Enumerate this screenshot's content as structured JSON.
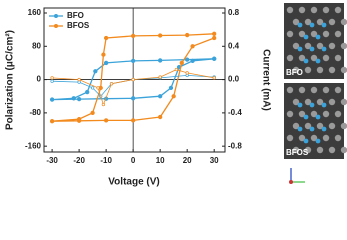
{
  "chart_data": {
    "type": "line",
    "x_label": "Voltage (V)",
    "y_label": "Polarization (μC/cm²)",
    "y2_label": "Current (mA)",
    "xlim": [
      -33,
      34
    ],
    "xticks": [
      -30,
      -20,
      -10,
      0,
      10,
      20,
      30
    ],
    "ylim": [
      -174,
      172
    ],
    "yticks": [
      -160,
      -80,
      0,
      80,
      160
    ],
    "y2lim": [
      -0.87,
      0.86
    ],
    "y2ticks": [
      -0.8,
      -0.4,
      {
        "value": 0,
        "label": "0.0"
      },
      0.4,
      0.8
    ],
    "legend": "top-left",
    "series": [
      {
        "name": "BFO",
        "color": "#3ba3d9",
        "x": [
          30,
          20,
          10,
          0,
          -10,
          -14,
          -17,
          -22,
          -30,
          -20,
          -10,
          0,
          10,
          14,
          17,
          22,
          30
        ],
        "values": [
          50,
          48,
          46,
          45,
          40,
          20,
          -30,
          -45,
          -48,
          -47,
          -46,
          -45,
          -40,
          -20,
          30,
          45,
          50
        ]
      },
      {
        "name": "BFOS",
        "color": "#f28a1e",
        "x": [
          30,
          20,
          10,
          0,
          -10,
          -11,
          -12,
          -15,
          -20,
          -30,
          -20,
          -10,
          0,
          10,
          15,
          18,
          22,
          30
        ],
        "values": [
          110,
          107,
          106,
          105,
          100,
          60,
          -20,
          -80,
          -95,
          -100,
          -99,
          -98,
          -98,
          -90,
          -40,
          40,
          80,
          100
        ]
      },
      {
        "color": "#3ba3d9",
        "axis": "y2",
        "x": [
          -30,
          -20,
          -15,
          -12,
          -8,
          0,
          10,
          20,
          30
        ],
        "values": [
          -0.02,
          -0.03,
          -0.1,
          -0.2,
          -0.05,
          0.0,
          0.02,
          0.05,
          0.03
        ]
      },
      {
        "color": "#f28a1e",
        "axis": "y2",
        "x": [
          -30,
          -20,
          -13,
          -11,
          -8,
          0,
          10,
          16,
          20,
          30
        ],
        "values": [
          0.02,
          0.0,
          -0.1,
          -0.3,
          -0.05,
          0.0,
          0.03,
          0.12,
          0.08,
          0.02
        ]
      }
    ]
  },
  "images": [
    {
      "label": "BFO"
    },
    {
      "label": "BFOS"
    }
  ]
}
